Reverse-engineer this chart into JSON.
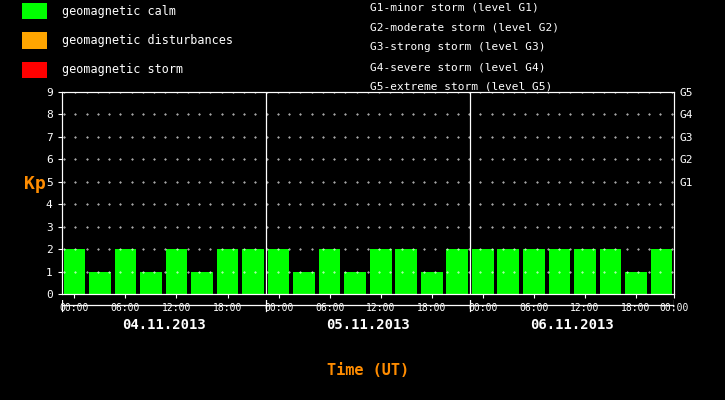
{
  "background_color": "#000000",
  "plot_bg_color": "#000000",
  "bar_color_calm": "#00ff00",
  "bar_color_disturbance": "#ffa500",
  "bar_color_storm": "#ff0000",
  "axis_color": "#ffffff",
  "ylabel_color": "#ff8c00",
  "xlabel_color": "#ff8c00",
  "right_label_color": "#ffffff",
  "date_label_color": "#ffffff",
  "days": [
    "04.11.2013",
    "05.11.2013",
    "06.11.2013"
  ],
  "kp_values": [
    [
      2,
      1,
      2,
      1,
      2,
      1,
      2,
      2
    ],
    [
      2,
      1,
      2,
      1,
      2,
      2,
      1,
      2
    ],
    [
      2,
      2,
      2,
      2,
      2,
      2,
      1,
      2
    ]
  ],
  "ylim": [
    0,
    9
  ],
  "yticks": [
    0,
    1,
    2,
    3,
    4,
    5,
    6,
    7,
    8,
    9
  ],
  "right_labels": [
    "G5",
    "G4",
    "G3",
    "G2",
    "G1"
  ],
  "right_label_yticks": [
    9,
    8,
    7,
    6,
    5
  ],
  "ylabel": "Kp",
  "xlabel": "Time (UT)",
  "legend_calm": "geomagnetic calm",
  "legend_disturbances": "geomagnetic disturbances",
  "legend_storm": "geomagnetic storm",
  "g_labels": [
    "G1-minor storm (level G1)",
    "G2-moderate storm (level G2)",
    "G3-strong storm (level G3)",
    "G4-severe storm (level G4)",
    "G5-extreme storm (level G5)"
  ],
  "font_family": "monospace",
  "dot_color": "#ffffff",
  "hour_labels": [
    "00:00",
    "06:00",
    "12:00",
    "18:00"
  ]
}
